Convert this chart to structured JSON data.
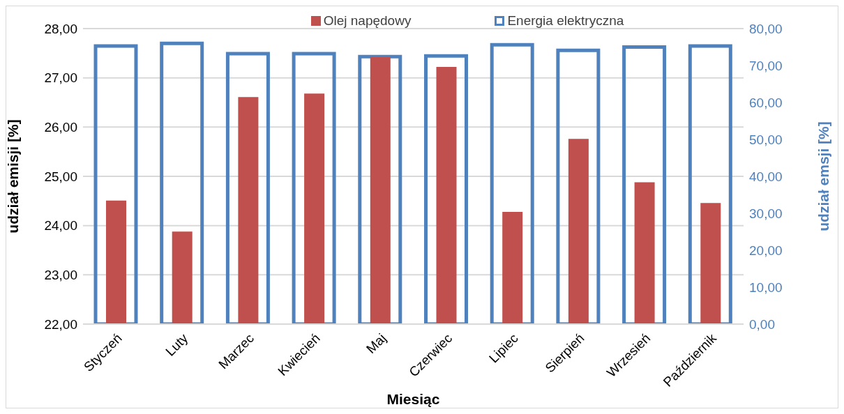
{
  "chart_data": {
    "type": "bar",
    "xlabel": "Miesiąc",
    "ylabel": "udział emisji [%]",
    "y2label": "udział emsji [%]",
    "categories": [
      "Styczeń",
      "Luty",
      "Marzec",
      "Kwiecień",
      "Maj",
      "Czerwiec",
      "Lipiec",
      "Sierpień",
      "Wrzesień",
      "Październik"
    ],
    "series": [
      {
        "name": "Olej napędowy",
        "color": "#c0504d",
        "values": [
          24.51,
          23.88,
          26.61,
          26.68,
          27.42,
          27.22,
          24.28,
          25.76,
          24.88,
          24.46
        ]
      },
      {
        "name": "Energia elektryczna",
        "color": "#4f81bd",
        "axis": "y2",
        "values": [
          75.3,
          76.0,
          73.2,
          73.2,
          72.4,
          72.6,
          75.6,
          74.1,
          75.0,
          75.3
        ]
      }
    ],
    "ylim": [
      22,
      28
    ],
    "yticks": [
      {
        "value": 22,
        "label": "22,00"
      },
      {
        "value": 23,
        "label": "23,00"
      },
      {
        "value": 24,
        "label": "24,00"
      },
      {
        "value": 25,
        "label": "25,00"
      },
      {
        "value": 26,
        "label": "26,00"
      },
      {
        "value": 27,
        "label": "27,00"
      },
      {
        "value": 28,
        "label": "28,00"
      }
    ],
    "y2lim": [
      0,
      80
    ],
    "y2ticks": [
      {
        "value": 0,
        "label": "0,00"
      },
      {
        "value": 10,
        "label": "10,00"
      },
      {
        "value": 20,
        "label": "20,00"
      },
      {
        "value": 30,
        "label": "30,00"
      },
      {
        "value": 40,
        "label": "40,00"
      },
      {
        "value": 50,
        "label": "50,00"
      },
      {
        "value": 60,
        "label": "60,00"
      },
      {
        "value": 70,
        "label": "70,00"
      },
      {
        "value": 80,
        "label": "80,00"
      }
    ],
    "grid": "y",
    "legend": "top"
  }
}
